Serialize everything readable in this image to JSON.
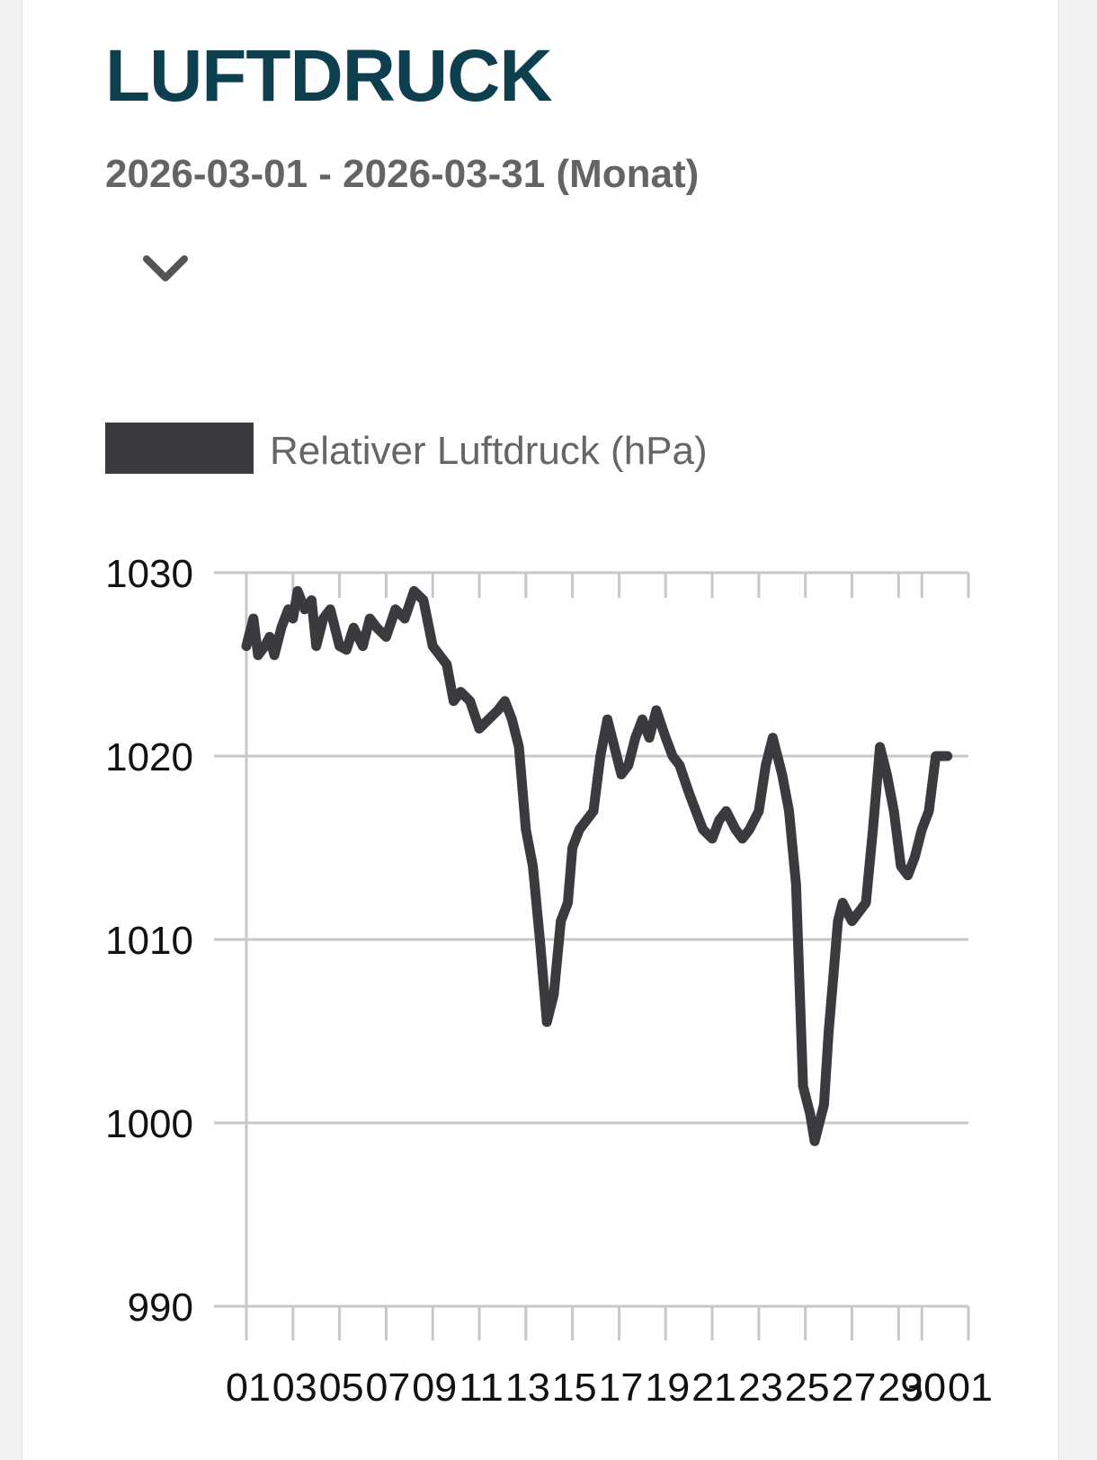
{
  "header": {
    "title": "LUFTDRUCK",
    "date_range": "2026-03-01 - 2026-03-31 (Monat)",
    "expand_icon": "chevron-down-icon"
  },
  "colors": {
    "title": "#0d3f4f",
    "subtitle": "#646464",
    "series": "#3a3b3f",
    "grid": "#c8c8c8"
  },
  "chart_data": {
    "type": "line",
    "legend_position": "top-left",
    "grid": true,
    "ylim": [
      990,
      1030
    ],
    "yticks": [
      "1030",
      "1020",
      "1010",
      "1000",
      "990"
    ],
    "xticklabels": [
      "01",
      "03",
      "05",
      "07",
      "09",
      "11",
      "13",
      "15",
      "17",
      "19",
      "21",
      "23",
      "25",
      "27",
      "29",
      "30",
      "01"
    ],
    "xtick_days": [
      1,
      3,
      5,
      7,
      9,
      11,
      13,
      15,
      17,
      19,
      21,
      23,
      25,
      27,
      29,
      30,
      32
    ],
    "series": [
      {
        "name": "Relativer Luftdruck (hPa)",
        "color": "#3a3b3f",
        "x": [
          1.0,
          1.3,
          1.5,
          1.8,
          2.0,
          2.2,
          2.5,
          2.8,
          3.0,
          3.2,
          3.5,
          3.8,
          4.0,
          4.3,
          4.6,
          5.0,
          5.3,
          5.6,
          6.0,
          6.3,
          6.6,
          7.0,
          7.4,
          7.8,
          8.2,
          8.6,
          9.0,
          9.3,
          9.6,
          9.9,
          10.2,
          10.6,
          11.0,
          11.4,
          11.8,
          12.1,
          12.4,
          12.7,
          13.0,
          13.3,
          13.6,
          13.9,
          14.2,
          14.5,
          14.8,
          15.0,
          15.3,
          15.6,
          15.9,
          16.2,
          16.5,
          16.8,
          17.1,
          17.4,
          17.7,
          18.0,
          18.3,
          18.6,
          19.0,
          19.3,
          19.6,
          20.0,
          20.3,
          20.6,
          21.0,
          21.3,
          21.6,
          22.0,
          22.3,
          22.6,
          23.0,
          23.3,
          23.6,
          24.0,
          24.3,
          24.6,
          24.9,
          25.2,
          25.4,
          25.6,
          25.8,
          26.0,
          26.2,
          26.4,
          26.6,
          26.8,
          27.0,
          27.3,
          27.6,
          27.9,
          28.2,
          28.5,
          28.8,
          29.1,
          29.4,
          29.7,
          30.0,
          30.3,
          30.6,
          30.9,
          31.1
        ],
        "y": [
          1026.0,
          1027.5,
          1025.5,
          1026.0,
          1026.5,
          1025.5,
          1027.0,
          1028.0,
          1027.5,
          1029.0,
          1028.0,
          1028.5,
          1026.0,
          1027.5,
          1028.0,
          1026.0,
          1025.8,
          1027.0,
          1026.0,
          1027.5,
          1027.0,
          1026.5,
          1028.0,
          1027.5,
          1029.0,
          1028.5,
          1026.0,
          1025.5,
          1025.0,
          1023.0,
          1023.5,
          1023.0,
          1021.5,
          1022.0,
          1022.5,
          1023.0,
          1022.0,
          1020.5,
          1016.0,
          1014.0,
          1010.0,
          1005.5,
          1007.0,
          1011.0,
          1012.0,
          1015.0,
          1016.0,
          1016.5,
          1017.0,
          1020.0,
          1022.0,
          1020.5,
          1019.0,
          1019.5,
          1021.0,
          1022.0,
          1021.0,
          1022.5,
          1021.0,
          1020.0,
          1019.5,
          1018.0,
          1017.0,
          1016.0,
          1015.5,
          1016.5,
          1017.0,
          1016.0,
          1015.5,
          1016.0,
          1017.0,
          1019.5,
          1021.0,
          1019.0,
          1017.0,
          1013.0,
          1002.0,
          1000.5,
          999.0,
          1000.0,
          1001.0,
          1005.0,
          1008.0,
          1011.0,
          1012.0,
          1011.5,
          1011.0,
          1011.5,
          1012.0,
          1016.0,
          1020.5,
          1019.0,
          1017.0,
          1014.0,
          1013.5,
          1014.5,
          1016.0,
          1017.0,
          1020.0,
          1020.0,
          1020.0
        ]
      }
    ]
  }
}
